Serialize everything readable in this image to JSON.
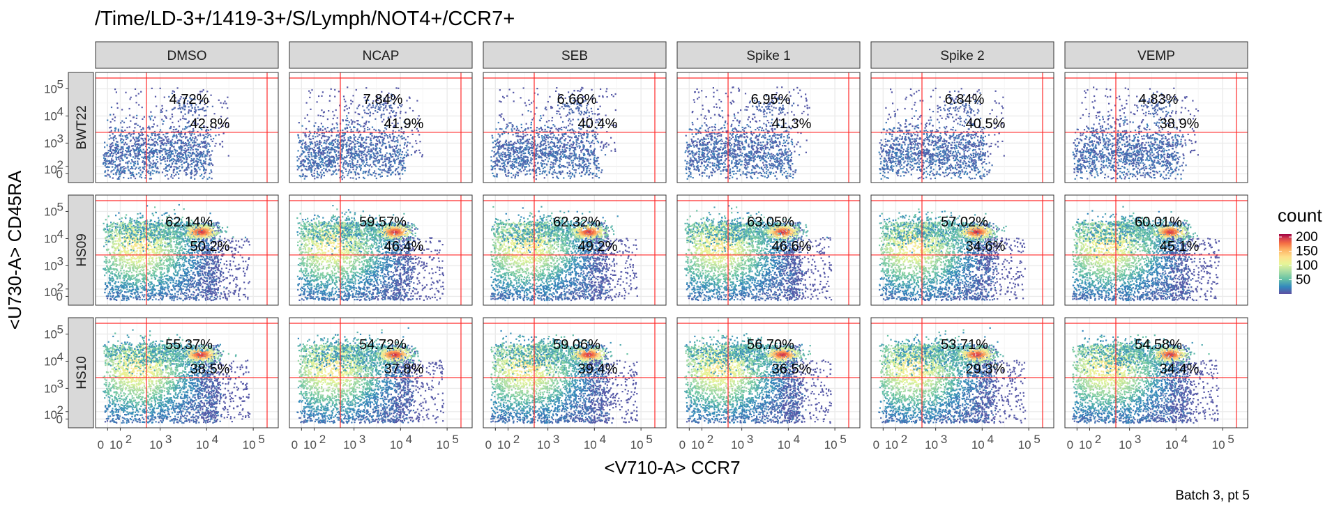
{
  "chart_data": {
    "type": "heatmap",
    "title": "/Time/LD-3+/1419-3+/S/Lymph/NOT4+/CCR7+",
    "xlabel": "<V710-A> CCR7",
    "ylabel": "<U730-A> CD45RA",
    "caption": "Batch 3, pt 5",
    "columns": [
      "DMSO",
      "NCAP",
      "SEB",
      "Spike 1",
      "Spike 2",
      "VEMP"
    ],
    "rows": [
      "BWT22",
      "HS09",
      "HS10"
    ],
    "x_ticks": [
      "0",
      "10^2",
      "10^3",
      "10^4",
      "10^5"
    ],
    "y_ticks": [
      "0",
      "10^2",
      "10^3",
      "10^4",
      "10^5"
    ],
    "x_scale": "biexponential",
    "y_scale": "biexponential",
    "gate_x": 500,
    "gate_y": 2500,
    "gate_lines_color": "#ff2a2a",
    "upper_percentages": [
      [
        "4.72%",
        "7.84%",
        "6.66%",
        "6.95%",
        "6.84%",
        "4.83%"
      ],
      [
        "62.14%",
        "59.57%",
        "62.32%",
        "63.05%",
        "57.02%",
        "60.01%"
      ],
      [
        "55.37%",
        "54.72%",
        "59.06%",
        "56.70%",
        "53.71%",
        "54.58%"
      ]
    ],
    "lower_percentages": [
      [
        "42.8%",
        "41.9%",
        "40.4%",
        "41.3%",
        "40.5%",
        "38.9%"
      ],
      [
        "50.2%",
        "46.4%",
        "49.2%",
        "46.6%",
        "34.6%",
        "45.1%"
      ],
      [
        "38.5%",
        "37.8%",
        "39.4%",
        "36.5%",
        "29.3%",
        "34.4%"
      ]
    ],
    "legend": {
      "title": "count",
      "ticks": [
        50,
        100,
        150,
        200
      ],
      "range": [
        0,
        210
      ],
      "colormap": "Spectral (reversed)",
      "colors": [
        "#5e4fa2",
        "#3288bd",
        "#66c2a5",
        "#abdda4",
        "#e6f598",
        "#fee08b",
        "#fdae61",
        "#f46d43",
        "#d53e4f",
        "#9e0142"
      ]
    },
    "grid": true
  }
}
